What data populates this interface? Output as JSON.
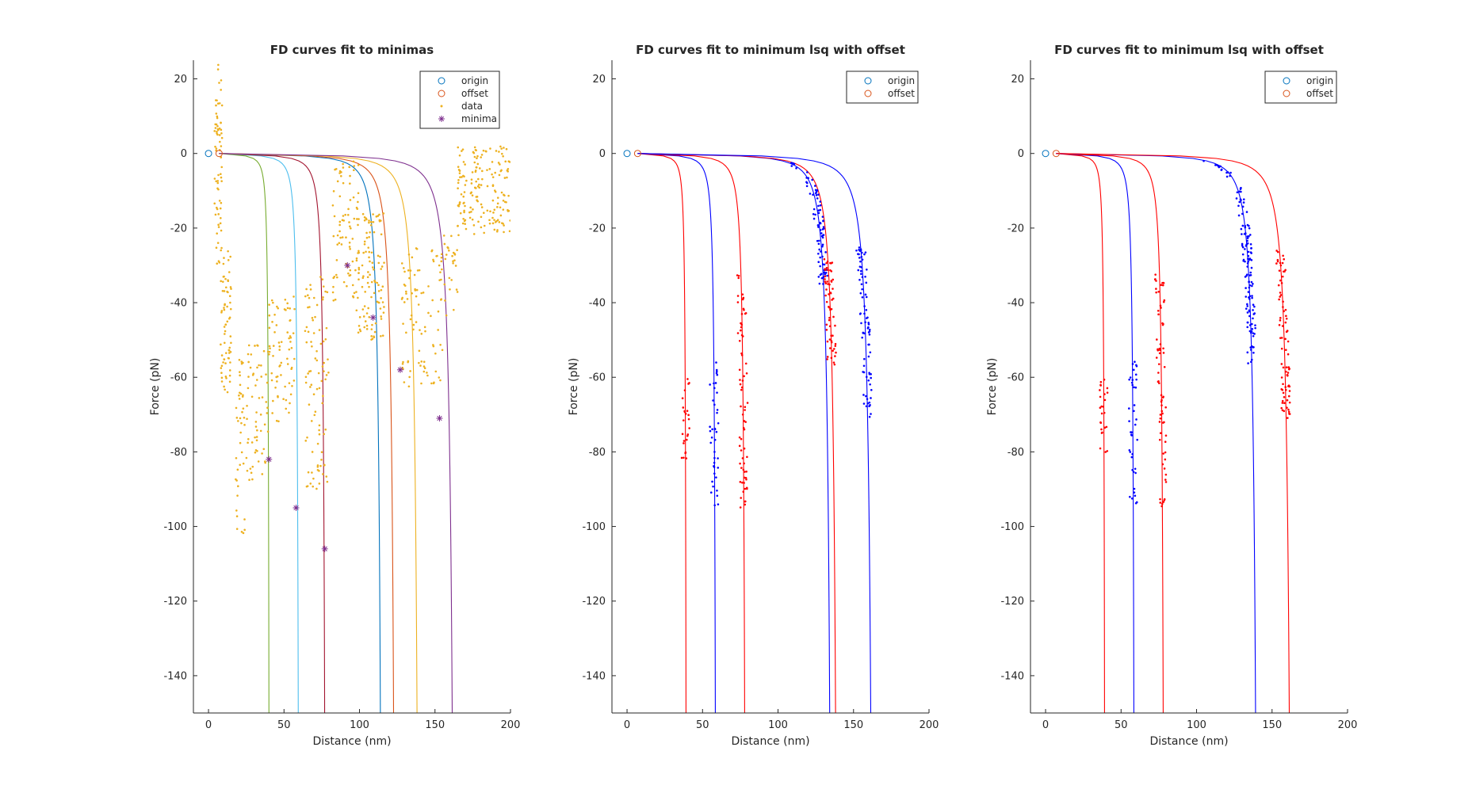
{
  "colors": {
    "origin": "#0072BD",
    "offset": "#D95319",
    "data": "#EDB120",
    "minima": "#7E2F8E",
    "fit_colors_left": [
      "#77AC30",
      "#4DBEEE",
      "#A2142F",
      "#0072BD",
      "#D95319",
      "#EDB120",
      "#7E2F8E"
    ],
    "blue": "#0000FF",
    "red": "#FF0000"
  },
  "chart_data": [
    {
      "type": "scatter",
      "title": "FD curves fit to minimas",
      "xlabel": "Distance (nm)",
      "ylabel": "Force (pN)",
      "xlim": [
        -10,
        200
      ],
      "ylim": [
        -150,
        25
      ],
      "xticks": [
        0,
        50,
        100,
        150,
        200
      ],
      "yticks": [
        20,
        0,
        -20,
        -40,
        -60,
        -80,
        -100,
        -120,
        -140
      ],
      "legend": {
        "location": "top-right",
        "entries": [
          {
            "label": "origin",
            "marker": "circle",
            "color": "origin"
          },
          {
            "label": "offset",
            "marker": "circle",
            "color": "offset"
          },
          {
            "label": "data",
            "marker": "dot",
            "color": "data"
          },
          {
            "label": "minima",
            "marker": "asterisk",
            "color": "minima"
          }
        ]
      },
      "origin": [
        0,
        0
      ],
      "offset": [
        7,
        0
      ],
      "fit_curves": [
        {
          "Lc": 41
        },
        {
          "Lc": 61
        },
        {
          "Lc": 79
        },
        {
          "Lc": 117
        },
        {
          "Lc": 126
        },
        {
          "Lc": 142
        },
        {
          "Lc": 166
        }
      ],
      "minima": [
        [
          40,
          -82
        ],
        [
          58,
          -95
        ],
        [
          77,
          -106
        ],
        [
          92,
          -30
        ],
        [
          109,
          -44
        ],
        [
          127,
          -58
        ],
        [
          153,
          -71
        ]
      ],
      "data_clusters": [
        {
          "x": [
            4,
            9
          ],
          "y": [
            -30,
            24
          ],
          "n": 70
        },
        {
          "x": [
            8,
            15
          ],
          "y": [
            -65,
            -25
          ],
          "n": 70
        },
        {
          "x": [
            18,
            24
          ],
          "y": [
            -103,
            -55
          ],
          "n": 40
        },
        {
          "x": [
            25,
            40
          ],
          "y": [
            -88,
            -50
          ],
          "n": 60
        },
        {
          "x": [
            40,
            57
          ],
          "y": [
            -72,
            -38
          ],
          "n": 70
        },
        {
          "x": [
            64,
            80
          ],
          "y": [
            -90,
            -32
          ],
          "n": 90
        },
        {
          "x": [
            82,
            100
          ],
          "y": [
            -40,
            -2
          ],
          "n": 80
        },
        {
          "x": [
            98,
            117
          ],
          "y": [
            -50,
            -15
          ],
          "n": 110
        },
        {
          "x": [
            128,
            155
          ],
          "y": [
            -63,
            -25
          ],
          "n": 90
        },
        {
          "x": [
            154,
            166
          ],
          "y": [
            -45,
            -22
          ],
          "n": 30
        },
        {
          "x": [
            165,
            200
          ],
          "y": [
            -22,
            2
          ],
          "n": 170
        }
      ]
    },
    {
      "type": "scatter",
      "title": "FD curves fit to minimum lsq with offset",
      "xlabel": "Distance (nm)",
      "ylabel": "Force (pN)",
      "xlim": [
        -10,
        200
      ],
      "ylim": [
        -150,
        25
      ],
      "xticks": [
        0,
        50,
        100,
        150,
        200
      ],
      "yticks": [
        20,
        0,
        -20,
        -40,
        -60,
        -80,
        -100,
        -120,
        -140
      ],
      "legend": {
        "location": "top-right",
        "entries": [
          {
            "label": "origin",
            "marker": "circle",
            "color": "origin"
          },
          {
            "label": "offset",
            "marker": "circle",
            "color": "offset"
          }
        ]
      },
      "origin": [
        0,
        0
      ],
      "offset": [
        7,
        0
      ],
      "fit_curves": [
        {
          "Lc": 40,
          "color": "red"
        },
        {
          "Lc": 60,
          "color": "blue"
        },
        {
          "Lc": 80,
          "color": "red"
        },
        {
          "Lc": 138,
          "color": "blue"
        },
        {
          "Lc": 142,
          "color": "red"
        },
        {
          "Lc": 166,
          "color": "blue"
        }
      ],
      "data_clusters": [
        {
          "Lc": 40,
          "y": [
            -82,
            -60
          ],
          "n": 25,
          "color": "red"
        },
        {
          "Lc": 60,
          "y": [
            -95,
            -55
          ],
          "n": 40,
          "color": "blue"
        },
        {
          "Lc": 80,
          "y": [
            -95,
            -32
          ],
          "n": 70,
          "color": "red"
        },
        {
          "Lc": 138,
          "y": [
            -35,
            -2
          ],
          "n": 80,
          "color": "blue"
        },
        {
          "Lc": 142,
          "y": [
            -57,
            -28
          ],
          "n": 60,
          "color": "red"
        },
        {
          "Lc": 166,
          "y": [
            -71,
            -25
          ],
          "n": 80,
          "color": "blue"
        }
      ]
    },
    {
      "type": "scatter",
      "title": "FD curves fit to minimum lsq with offset",
      "xlabel": "Distance (nm)",
      "ylabel": "Force (pN)",
      "xlim": [
        -10,
        200
      ],
      "ylim": [
        -150,
        25
      ],
      "xticks": [
        0,
        50,
        100,
        150,
        200
      ],
      "yticks": [
        20,
        0,
        -20,
        -40,
        -60,
        -80,
        -100,
        -120,
        -140
      ],
      "legend": {
        "location": "top-right",
        "entries": [
          {
            "label": "origin",
            "marker": "circle",
            "color": "origin"
          },
          {
            "label": "offset",
            "marker": "circle",
            "color": "offset"
          }
        ]
      },
      "origin": [
        0,
        0
      ],
      "offset": [
        7,
        0
      ],
      "fit_curves": [
        {
          "Lc": 40,
          "color": "red"
        },
        {
          "Lc": 60,
          "color": "blue"
        },
        {
          "Lc": 80,
          "color": "red"
        },
        {
          "Lc": 143,
          "color": "blue"
        },
        {
          "Lc": 166,
          "color": "red"
        }
      ],
      "data_clusters": [
        {
          "Lc": 40,
          "y": [
            -82,
            -60
          ],
          "n": 25,
          "color": "red"
        },
        {
          "Lc": 60,
          "y": [
            -95,
            -55
          ],
          "n": 40,
          "color": "blue"
        },
        {
          "Lc": 80,
          "y": [
            -95,
            -32
          ],
          "n": 70,
          "color": "red"
        },
        {
          "Lc": 143,
          "y": [
            -57,
            -2
          ],
          "n": 130,
          "color": "blue"
        },
        {
          "Lc": 166,
          "y": [
            -71,
            -25
          ],
          "n": 80,
          "color": "red"
        }
      ]
    }
  ]
}
